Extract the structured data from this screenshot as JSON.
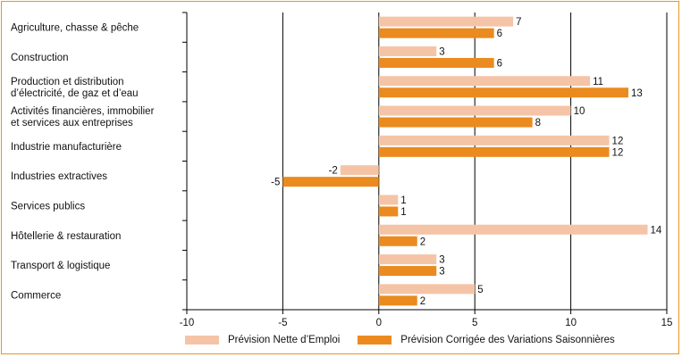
{
  "chart_data": {
    "type": "bar",
    "orientation": "horizontal",
    "categories": [
      [
        "Agriculture, chasse & pêche"
      ],
      [
        "Construction"
      ],
      [
        "Production et distribution",
        "d’électricité, de gaz et d’eau"
      ],
      [
        "Activités financières, immobilier",
        "et services aux entreprises"
      ],
      [
        "Industrie manufacturière"
      ],
      [
        "Industries extractives"
      ],
      [
        "Services publics"
      ],
      [
        "Hôtellerie & restauration"
      ],
      [
        "Transport & logistique"
      ],
      [
        "Commerce"
      ]
    ],
    "series": [
      {
        "name": "Prévision Nette d’Emploi",
        "color": "#F5C4A6",
        "values": [
          7,
          3,
          11,
          10,
          12,
          -2,
          1,
          14,
          3,
          5
        ]
      },
      {
        "name": "Prévision Corrigée des Variations Saisonnières",
        "color": "#EB8A1E",
        "values": [
          6,
          6,
          13,
          8,
          12,
          -5,
          1,
          2,
          3,
          2
        ]
      }
    ],
    "xlim": [
      -10,
      15
    ],
    "xticks": [
      -10,
      -5,
      0,
      5,
      10,
      15
    ],
    "grid": "vertical",
    "legend_position": "bottom"
  }
}
